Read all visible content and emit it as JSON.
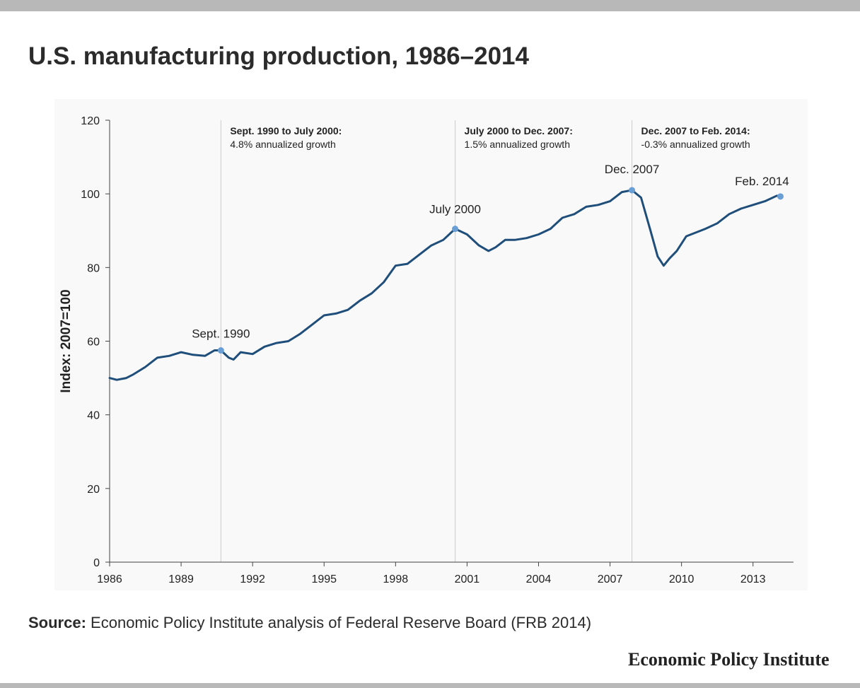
{
  "title": "U.S. manufacturing production, 1986–2014",
  "source": {
    "label": "Source:",
    "text": "Economic Policy Institute analysis of Federal Reserve Board (FRB 2014)"
  },
  "brand": "Economic Policy Institute",
  "chart_data": {
    "type": "line",
    "ylabel": "Index: 2007=100",
    "ylim": [
      0,
      120
    ],
    "xlim": [
      1986.0,
      2014.7
    ],
    "yticks": [
      0,
      20,
      40,
      60,
      80,
      100,
      120
    ],
    "xticks": [
      "1986",
      "1989",
      "1992",
      "1995",
      "1998",
      "2001",
      "2004",
      "2007",
      "2010",
      "2013"
    ],
    "grid": false,
    "line_color": "#1f4e7a",
    "marker_color": "#6a9fd6",
    "series": [
      {
        "x": [
          1986.0,
          1986.3,
          1986.7,
          1987.0,
          1987.5,
          1988.0,
          1988.5,
          1989.0,
          1989.5,
          1990.0,
          1990.4,
          1990.67,
          1991.0,
          1991.2,
          1991.5,
          1992.0,
          1992.5,
          1993.0,
          1993.5,
          1994.0,
          1994.5,
          1995.0,
          1995.5,
          1996.0,
          1996.5,
          1997.0,
          1997.5,
          1998.0,
          1998.5,
          1999.0,
          1999.5,
          2000.0,
          2000.5,
          2001.0,
          2001.5,
          2001.9,
          2002.2,
          2002.6,
          2003.0,
          2003.5,
          2004.0,
          2004.5,
          2005.0,
          2005.5,
          2006.0,
          2006.5,
          2007.0,
          2007.5,
          2007.92,
          2008.3,
          2008.7,
          2009.0,
          2009.25,
          2009.5,
          2009.8,
          2010.2,
          2010.6,
          2011.0,
          2011.5,
          2012.0,
          2012.5,
          2013.0,
          2013.5,
          2014.0,
          2014.15
        ],
        "y": [
          50,
          49.5,
          50,
          51,
          53,
          55.5,
          56,
          57,
          56.3,
          56,
          57.5,
          57.5,
          55.5,
          55,
          57,
          56.5,
          58.5,
          59.5,
          60,
          62,
          64.5,
          67,
          67.5,
          68.5,
          71,
          73,
          76,
          80.5,
          81,
          83.5,
          86,
          87.5,
          90.5,
          89,
          86,
          84.5,
          85.5,
          87.5,
          87.5,
          88,
          89,
          90.5,
          93.5,
          94.5,
          96.5,
          97,
          98,
          100.5,
          101,
          99,
          90,
          83,
          80.5,
          82.5,
          84.5,
          88.5,
          89.5,
          90.5,
          92,
          94.5,
          96,
          97,
          98,
          99.5,
          99.3
        ]
      }
    ],
    "highlight_points": [
      {
        "label": "Sept. 1990",
        "x": 1990.67,
        "y": 57.5
      },
      {
        "label": "July 2000",
        "x": 2000.5,
        "y": 90.5
      },
      {
        "label": "Dec. 2007",
        "x": 2007.92,
        "y": 101
      },
      {
        "label": "Feb. 2014",
        "x": 2014.15,
        "y": 99.3
      }
    ],
    "period_lines": [
      1990.67,
      2000.5,
      2007.92
    ],
    "annotations": [
      {
        "x": 1990.67,
        "title": "Sept. 1990 to July 2000:",
        "text": "4.8% annualized growth"
      },
      {
        "x": 2000.5,
        "title": "July 2000 to Dec. 2007:",
        "text": "1.5% annualized growth"
      },
      {
        "x": 2007.92,
        "title": "Dec. 2007 to Feb. 2014:",
        "text": "-0.3% annualized growth"
      }
    ]
  }
}
